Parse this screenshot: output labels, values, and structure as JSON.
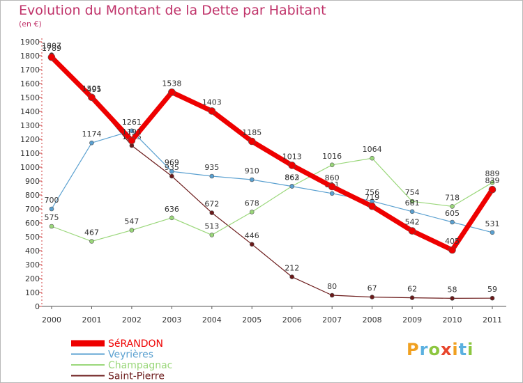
{
  "title": "Evolution du Montant de la Dette par Habitant",
  "subtitle": "(en €)",
  "logo": {
    "letters": [
      "P",
      "r",
      "o",
      "x",
      "i",
      "t",
      "i"
    ],
    "colors": [
      "#f0a020",
      "#5ab0e0",
      "#8cc63f",
      "#e8452c",
      "#f0a020",
      "#5ab0e0",
      "#8cc63f"
    ]
  },
  "chart_data": {
    "type": "line",
    "x": [
      "2000",
      "2001",
      "2002",
      "2003",
      "2004",
      "2005",
      "2006",
      "2007",
      "2008",
      "2009",
      "2010",
      "2011"
    ],
    "ylim": [
      0,
      1900
    ],
    "yticks": [
      0,
      100,
      200,
      300,
      400,
      500,
      600,
      700,
      800,
      900,
      1000,
      1100,
      1200,
      1300,
      1400,
      1500,
      1600,
      1700,
      1800,
      1900
    ],
    "grid": false,
    "legend": "bottom-left",
    "series": [
      {
        "name": "Saint-Pierre",
        "color": "#6b1a1a",
        "width": 1.2,
        "values": [
          1807,
          1495,
          1155,
          935,
          672,
          446,
          212,
          80,
          67,
          62,
          58,
          59
        ]
      },
      {
        "name": "Champagnac",
        "color": "#9ad77a",
        "width": 1.2,
        "values": [
          575,
          467,
          547,
          636,
          513,
          678,
          863,
          1016,
          1064,
          754,
          718,
          889
        ]
      },
      {
        "name": "Veyrières",
        "color": "#5aa0d0",
        "width": 1.2,
        "values": [
          700,
          1174,
          1261,
          969,
          935,
          910,
          862,
          811,
          756,
          681,
          605,
          531
        ]
      },
      {
        "name": "SéRANDON",
        "color": "#ee0000",
        "width": 7,
        "values": [
          1789,
          1501,
          1191,
          1538,
          1403,
          1185,
          1013,
          860,
          719,
          542,
          405,
          839
        ]
      }
    ]
  }
}
